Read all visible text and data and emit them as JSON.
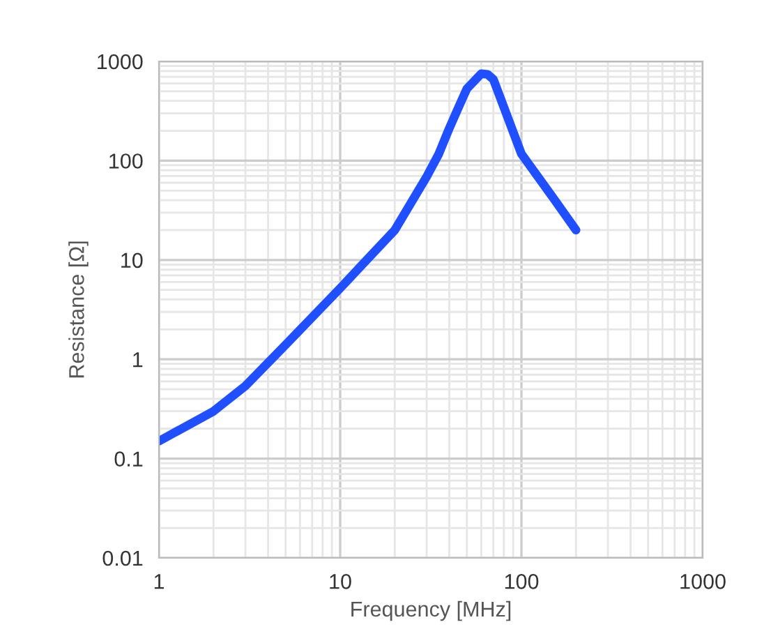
{
  "chart_data": {
    "type": "line",
    "xlabel": "Frequency [MHz]",
    "ylabel": "Resistance [Ω]",
    "log": "xy",
    "grid": true,
    "xlim": [
      1,
      1000
    ],
    "xticks": [
      1,
      10,
      100,
      1000
    ],
    "ylim": [
      0.01,
      1000
    ],
    "yticks": [
      0.01,
      0.1,
      1,
      10,
      100,
      1000
    ],
    "series": [
      {
        "color": "#1f4fff",
        "x": [
          1,
          2,
          3,
          5,
          10,
          20,
          30,
          35,
          40,
          45,
          50,
          60,
          65,
          70,
          80,
          100,
          150,
          200
        ],
        "values": [
          0.15,
          0.3,
          0.54,
          1.4,
          5.2,
          20,
          69,
          117,
          212,
          345,
          530,
          750,
          740,
          660,
          345,
          117,
          42,
          20
        ]
      }
    ]
  }
}
